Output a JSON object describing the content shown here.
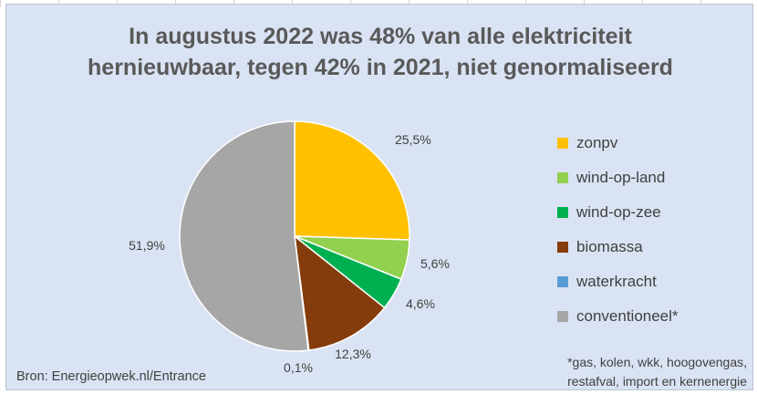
{
  "chart_data": {
    "type": "pie",
    "title_lines": [
      "In augustus 2022 was 48% van alle elektriciteit",
      "hernieuwbaar, tegen 42% in 2021, niet genormaliseerd"
    ],
    "categories": [
      "zonpv",
      "wind-op-land",
      "wind-op-zee",
      "biomassa",
      "waterkracht",
      "conventioneel*"
    ],
    "values": [
      25.5,
      5.6,
      4.6,
      12.3,
      0.1,
      51.9
    ],
    "value_labels": [
      "25,5%",
      "5,6%",
      "4,6%",
      "12,3%",
      "0,1%",
      "51,9%"
    ],
    "colors": [
      "#ffc000",
      "#92d050",
      "#00b050",
      "#843c0c",
      "#5b9bd5",
      "#a6a6a6"
    ],
    "legend_position": "right"
  },
  "source_text": "Bron: Energieopwek.nl/Entrance",
  "footnote_lines": [
    "*gas, kolen, wkk, hoogovengas,",
    "restafval, import en kernenergie"
  ]
}
